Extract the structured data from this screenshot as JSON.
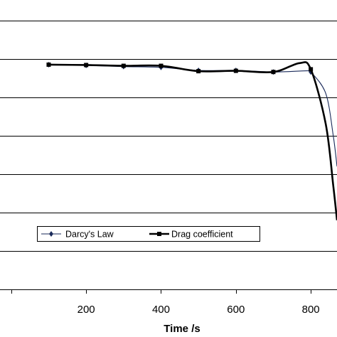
{
  "chart_data": {
    "type": "line",
    "xlabel": "Time /s",
    "ylabel": "",
    "title": "",
    "xlim": [
      -30,
      870
    ],
    "ylim": [
      0,
      7.2
    ],
    "x_ticks": [
      200,
      400,
      600,
      800
    ],
    "grid": "horizontal",
    "legend_position": "bottom-left",
    "series": [
      {
        "name": "Darcy's Law",
        "marker": "diamond",
        "color": "#1a2a5a",
        "line_style": "thin",
        "x": [
          100,
          200,
          300,
          400,
          500,
          600,
          700,
          790,
          800,
          840,
          860,
          870
        ],
        "y": [
          5.85,
          5.83,
          5.8,
          5.78,
          5.7,
          5.7,
          5.66,
          5.69,
          5.66,
          5.1,
          4.0,
          3.2
        ]
      },
      {
        "name": "Drag coefficient",
        "marker": "square",
        "color": "#000000",
        "line_style": "thick",
        "x": [
          100,
          200,
          300,
          400,
          500,
          600,
          700,
          770,
          800,
          840,
          860,
          870
        ],
        "y": [
          5.85,
          5.84,
          5.82,
          5.82,
          5.68,
          5.69,
          5.66,
          5.89,
          5.73,
          4.3,
          2.7,
          1.8
        ]
      }
    ]
  }
}
